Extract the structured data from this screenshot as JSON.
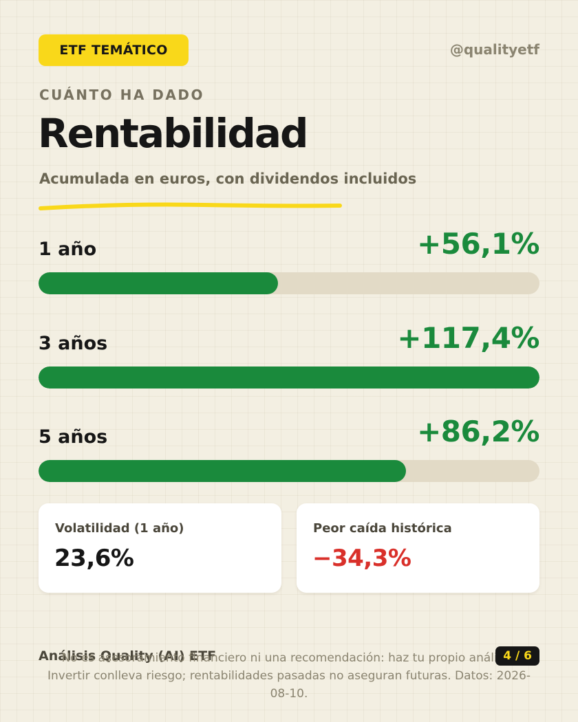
{
  "header": {
    "tag": "ETF TEMÁTICO",
    "handle": "@qualityetf"
  },
  "hero": {
    "eyebrow": "CUÁNTO HA DADO",
    "title": "Rentabilidad",
    "subtitle": "Acumulada en euros, con dividendos incluidos"
  },
  "colors": {
    "accent_yellow": "#f9d81a",
    "positive_green": "#1a8a3c",
    "negative_red": "#d9302a",
    "track": "#e2dac6",
    "background": "#f3efe2"
  },
  "returns": [
    {
      "label": "1 año",
      "value": "+56,1%",
      "bar_fraction": 0.478
    },
    {
      "label": "3 años",
      "value": "+117,4%",
      "bar_fraction": 1.0
    },
    {
      "label": "5 años",
      "value": "+86,2%",
      "bar_fraction": 0.734
    }
  ],
  "stats": {
    "volatility": {
      "label": "Volatilidad (1 año)",
      "value": "23,6%",
      "color": "#161616"
    },
    "drawdown": {
      "label": "Peor caída histórica",
      "value": "−34,3%",
      "color": "#d9302a"
    }
  },
  "footer": {
    "brand": "Análisis Quality (AI) ETF",
    "page": "4 / 6",
    "disclaimer": "No es asesoramiento financiero ni una recomendación: haz tu propio análisis. Invertir conlleva riesgo; rentabilidades pasadas no aseguran futuras. Datos: 2026-08-10."
  }
}
